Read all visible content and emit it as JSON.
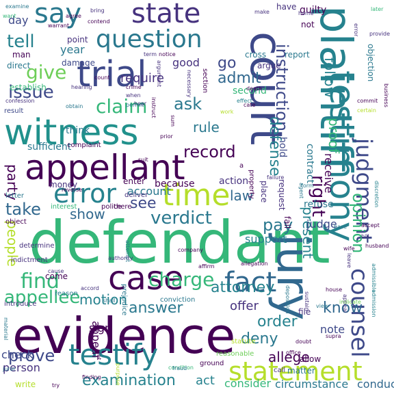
{
  "words": [
    {
      "text": "defendant",
      "color": "#35b779"
    },
    {
      "text": "evidence",
      "color": "#440154"
    },
    {
      "text": "court",
      "color": "#3e4989"
    },
    {
      "text": "jury",
      "color": "#31688e"
    },
    {
      "text": "plaintiff",
      "color": "#26828e"
    },
    {
      "text": "witness",
      "color": "#21918c"
    },
    {
      "text": "appellant",
      "color": "#440154"
    },
    {
      "text": "case",
      "color": "#440154"
    },
    {
      "text": "trial",
      "color": "#3e4989"
    },
    {
      "text": "testimony",
      "color": "#26828e"
    },
    {
      "text": "state",
      "color": "#46327e"
    },
    {
      "text": "say",
      "color": "#2a788e"
    },
    {
      "text": "fact",
      "color": "#31688e"
    },
    {
      "text": "testify",
      "color": "#26828e"
    },
    {
      "text": "time",
      "color": "#b5de2b"
    },
    {
      "text": "statement",
      "color": "#b5de2b"
    },
    {
      "text": "counsel",
      "color": "#3e4989"
    },
    {
      "text": "question",
      "color": "#2a788e"
    },
    {
      "text": "error",
      "color": "#26828e"
    },
    {
      "text": "judgment",
      "color": "#3e4989"
    },
    {
      "text": "charge",
      "color": "#35b779"
    },
    {
      "text": "find",
      "color": "#35b779"
    },
    {
      "text": "claim",
      "color": "#35b779"
    },
    {
      "text": "give",
      "color": "#6ece58"
    },
    {
      "text": "verdict",
      "color": "#2a788e"
    },
    {
      "text": "appellee",
      "color": "#35b779"
    },
    {
      "text": "instruction",
      "color": "#3e4989"
    },
    {
      "text": "answer",
      "color": "#2a788e"
    },
    {
      "text": "tell",
      "color": "#26828e"
    },
    {
      "text": "record",
      "color": "#440154"
    },
    {
      "text": "issue",
      "color": "#3e4989"
    },
    {
      "text": "right",
      "color": "#440154"
    },
    {
      "text": "attorney",
      "color": "#26828e"
    },
    {
      "text": "know",
      "color": "#31688e"
    },
    {
      "text": "opinion",
      "color": "#35b779"
    },
    {
      "text": "ask",
      "color": "#2a788e"
    },
    {
      "text": "present",
      "color": "#26828e"
    },
    {
      "text": "proof",
      "color": "#35b779"
    },
    {
      "text": "follow",
      "color": "#26828e"
    },
    {
      "text": "defense",
      "color": "#26828e"
    },
    {
      "text": "prove",
      "color": "#3e4989"
    },
    {
      "text": "motion",
      "color": "#26828e"
    },
    {
      "text": "examination",
      "color": "#26828e"
    },
    {
      "text": "admit",
      "color": "#31688e"
    },
    {
      "text": "law",
      "color": "#31688e"
    },
    {
      "text": "pay",
      "color": "#2a788e"
    },
    {
      "text": "people",
      "color": "#b5de2b"
    },
    {
      "text": "take",
      "color": "#31688e"
    },
    {
      "text": "go",
      "color": "#3e4989"
    },
    {
      "text": "order",
      "color": "#26828e"
    },
    {
      "text": "deny",
      "color": "#2a788e"
    },
    {
      "text": "allege",
      "color": "#440154"
    },
    {
      "text": "show",
      "color": "#31688e"
    },
    {
      "text": "see",
      "color": "#3e4989"
    },
    {
      "text": "rule",
      "color": "#2a788e"
    },
    {
      "text": "party",
      "color": "#440154"
    },
    {
      "text": "require",
      "color": "#46327e"
    },
    {
      "text": "check",
      "color": "#3e4989"
    },
    {
      "text": "person",
      "color": "#46327e"
    },
    {
      "text": "note",
      "color": "#3e4989"
    },
    {
      "text": "year",
      "color": "#2a788e"
    },
    {
      "text": "day",
      "color": "#3e4989"
    },
    {
      "text": "good",
      "color": "#46327e"
    },
    {
      "text": "offer",
      "color": "#46327e"
    },
    {
      "text": "receive",
      "color": "#440154"
    },
    {
      "text": "account",
      "color": "#2a788e"
    },
    {
      "text": "support",
      "color": "#26828e"
    },
    {
      "text": "act",
      "color": "#26828e"
    },
    {
      "text": "consider",
      "color": "#35b779"
    },
    {
      "text": "circumstance",
      "color": "#2a788e"
    },
    {
      "text": "conduct",
      "color": "#31688e"
    },
    {
      "text": "judge",
      "color": "#3e4989"
    },
    {
      "text": "appear",
      "color": "#440154"
    },
    {
      "text": "sign",
      "color": "#440154"
    },
    {
      "text": "action",
      "color": "#46327e"
    },
    {
      "text": "sufficient",
      "color": "#2a788e"
    },
    {
      "text": "think",
      "color": "#2a788e"
    },
    {
      "text": "because",
      "color": "#440154"
    },
    {
      "text": "second",
      "color": "#35b779"
    },
    {
      "text": "hold",
      "color": "#3e4989"
    },
    {
      "text": "contract",
      "color": "#2a788e"
    },
    {
      "text": "refuse",
      "color": "#2a788e"
    },
    {
      "text": "place",
      "color": "#46327e"
    },
    {
      "text": "request",
      "color": "#46327e"
    },
    {
      "text": "report",
      "color": "#2a788e"
    },
    {
      "text": "cross",
      "color": "#2a788e"
    },
    {
      "text": "not",
      "color": "#440154"
    },
    {
      "text": "guilty",
      "color": "#440154"
    },
    {
      "text": "have",
      "color": "#46327e"
    },
    {
      "text": "man",
      "color": "#440154"
    },
    {
      "text": "point",
      "color": "#46327e"
    },
    {
      "text": "direct",
      "color": "#2a788e"
    },
    {
      "text": "damage",
      "color": "#3e4989"
    },
    {
      "text": "establish",
      "color": "#35b779"
    },
    {
      "text": "argue",
      "color": "#46327e"
    },
    {
      "text": "result",
      "color": "#3e4989"
    },
    {
      "text": "complaint",
      "color": "#440154"
    },
    {
      "text": "enter",
      "color": "#440154"
    },
    {
      "text": "money",
      "color": "#46327e"
    },
    {
      "text": "letter",
      "color": "#2a788e"
    },
    {
      "text": "there",
      "color": "#440154"
    },
    {
      "text": "fail",
      "color": "#440154"
    },
    {
      "text": "come",
      "color": "#440154"
    },
    {
      "text": "reason",
      "color": "#2a788e"
    },
    {
      "text": "matter",
      "color": "#2a788e"
    },
    {
      "text": "call",
      "color": "#46327e"
    },
    {
      "text": "allow",
      "color": "#440154"
    },
    {
      "text": "ground",
      "color": "#440154"
    },
    {
      "text": "file",
      "color": "#46327e"
    },
    {
      "text": "reasonable",
      "color": "#6ece58"
    },
    {
      "text": "statute",
      "color": "#b5de2b"
    },
    {
      "text": "write",
      "color": "#b5de2b"
    },
    {
      "text": "introduce",
      "color": "#46327e"
    },
    {
      "text": "conviction",
      "color": "#2a788e"
    },
    {
      "text": "prejudice",
      "color": "#2a788e"
    },
    {
      "text": "indictment",
      "color": "#46327e"
    },
    {
      "text": "determine",
      "color": "#46327e"
    },
    {
      "text": "object",
      "color": "#440154"
    },
    {
      "text": "interest",
      "color": "#35b779"
    },
    {
      "text": "police",
      "color": "#440154"
    },
    {
      "text": "deliver",
      "color": "#46327e"
    },
    {
      "text": "agent",
      "color": "#2a788e"
    },
    {
      "text": "failure",
      "color": "#46327e"
    },
    {
      "text": "form",
      "color": "#2a788e"
    },
    {
      "text": "base",
      "color": "#2a788e"
    },
    {
      "text": "accept",
      "color": "#440154"
    },
    {
      "text": "bill",
      "color": "#46327e"
    },
    {
      "text": "admission",
      "color": "#26828e"
    },
    {
      "text": "admissible",
      "color": "#26828e"
    },
    {
      "text": "discretion",
      "color": "#26828e"
    },
    {
      "text": "appeal",
      "color": "#46327e"
    },
    {
      "text": "house",
      "color": "#440154"
    },
    {
      "text": "wife",
      "color": "#440154"
    },
    {
      "text": "husband",
      "color": "#440154"
    },
    {
      "text": "leave",
      "color": "#46327e"
    },
    {
      "text": "indicate",
      "color": "#6ece58"
    },
    {
      "text": "view",
      "color": "#2a788e"
    },
    {
      "text": "sustain",
      "color": "#46327e"
    },
    {
      "text": "deposition",
      "color": "#2a788e"
    },
    {
      "text": "allegation",
      "color": "#440154"
    },
    {
      "text": "affirm",
      "color": "#440154"
    },
    {
      "text": "company",
      "color": "#440154"
    },
    {
      "text": "attempt",
      "color": "#2a788e"
    },
    {
      "text": "set",
      "color": "#440154"
    },
    {
      "text": "shall",
      "color": "#2a788e"
    },
    {
      "text": "purpose",
      "color": "#b5de2b"
    },
    {
      "text": "condition",
      "color": "#35b779"
    },
    {
      "text": "fraud",
      "color": "#2a788e"
    },
    {
      "text": "juror",
      "color": "#2a788e"
    },
    {
      "text": "material",
      "color": "#2a788e"
    },
    {
      "text": "finding",
      "color": "#440154"
    },
    {
      "text": "cause",
      "color": "#46327e"
    },
    {
      "text": "authority",
      "color": "#46327e"
    },
    {
      "text": "accord",
      "color": "#46327e"
    },
    {
      "text": "examine",
      "color": "#2a788e"
    },
    {
      "text": "want",
      "color": "#35b779"
    },
    {
      "text": "warrant",
      "color": "#440154"
    },
    {
      "text": "contend",
      "color": "#440154"
    },
    {
      "text": "agree",
      "color": "#440154"
    },
    {
      "text": "bring",
      "color": "#46327e"
    },
    {
      "text": "make",
      "color": "#46327e"
    },
    {
      "text": "home",
      "color": "#46327e"
    },
    {
      "text": "error",
      "color": "#46327e"
    },
    {
      "text": "provide",
      "color": "#46327e"
    },
    {
      "text": "later",
      "color": "#35b779"
    },
    {
      "text": "term",
      "color": "#46327e"
    },
    {
      "text": "notice",
      "color": "#440154"
    },
    {
      "text": "section",
      "color": "#440154"
    },
    {
      "text": "effect",
      "color": "#26828e"
    },
    {
      "text": "death",
      "color": "#440154"
    },
    {
      "text": "count",
      "color": "#440154"
    },
    {
      "text": "crime",
      "color": "#440154"
    },
    {
      "text": "when",
      "color": "#46327e"
    },
    {
      "text": "hear",
      "color": "#46327e"
    },
    {
      "text": "argument",
      "color": "#46327e"
    },
    {
      "text": "necessary",
      "color": "#46327e"
    },
    {
      "text": "hearing",
      "color": "#46327e"
    },
    {
      "text": "confession",
      "color": "#46327e"
    },
    {
      "text": "obtain",
      "color": "#2a788e"
    },
    {
      "text": "permit",
      "color": "#2a788e"
    },
    {
      "text": "instruct",
      "color": "#440154"
    },
    {
      "text": "business",
      "color": "#440154"
    },
    {
      "text": "commit",
      "color": "#440154"
    },
    {
      "text": "certain",
      "color": "#b5de2b"
    },
    {
      "text": "cate",
      "color": "#440154"
    },
    {
      "text": "work",
      "color": "#b5de2b"
    },
    {
      "text": "prior",
      "color": "#440154"
    },
    {
      "text": "sum",
      "color": "#440154"
    },
    {
      "text": "property",
      "color": "#440154"
    },
    {
      "text": "a",
      "color": "#440154"
    },
    {
      "text": "suit",
      "color": "#440154"
    },
    {
      "text": "reverse",
      "color": "#440154"
    },
    {
      "text": "office",
      "color": "#440154"
    },
    {
      "text": "doubt",
      "color": "#440154"
    },
    {
      "text": "supra",
      "color": "#440154"
    },
    {
      "text": "try",
      "color": "#440154"
    },
    {
      "text": "objection",
      "color": "#2a788e"
    }
  ]
}
